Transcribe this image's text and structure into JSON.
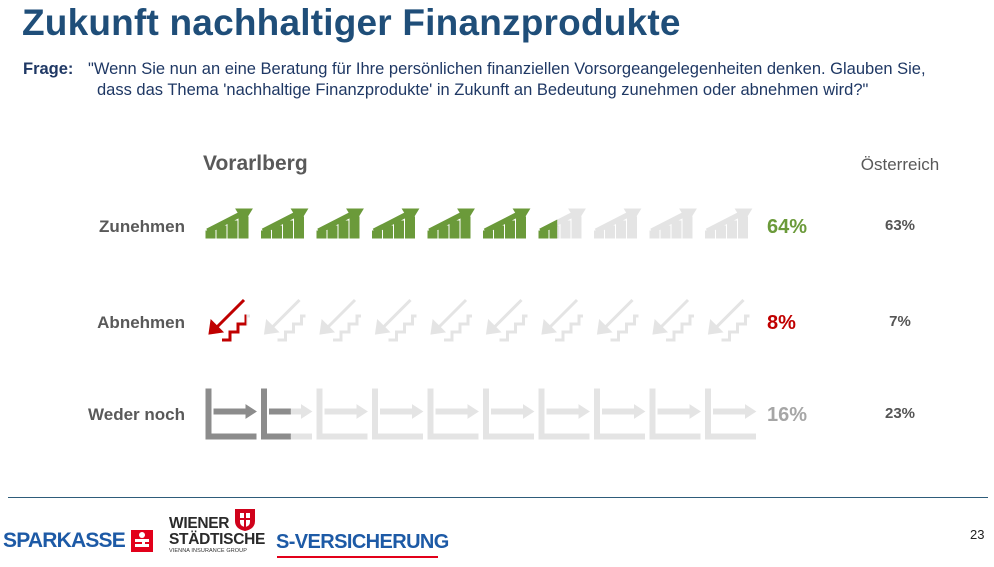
{
  "title": "Zukunft nachhaltiger Finanzprodukte",
  "question": {
    "label": "Frage:",
    "line1": "\"Wenn Sie nun an eine Beratung für Ihre persönlichen finanziellen Vorsorgeangelegenheiten denken. Glauben Sie,",
    "line2": "dass das Thema 'nachhaltige Finanzprodukte' in Zukunft an Bedeutung zunehmen oder abnehmen wird?\""
  },
  "chart_data": {
    "type": "bar",
    "title": "",
    "categories": [
      "Zunehmen",
      "Abnehmen",
      "Weder noch"
    ],
    "series": [
      {
        "name": "Vorarlberg",
        "values": [
          64,
          8,
          16
        ],
        "labels": [
          "64%",
          "8%",
          "16%"
        ]
      },
      {
        "name": "Österreich",
        "values": [
          63,
          7,
          23
        ],
        "labels": [
          "63%",
          "7%",
          "23%"
        ]
      }
    ],
    "unit": "%",
    "icons": [
      "rising-bars-icon",
      "falling-stairs-icon",
      "flat-arrow-icon"
    ],
    "icons_per_row": 10,
    "colors": {
      "Zunehmen": "#6b9a3a",
      "Abnehmen": "#c00000",
      "Weder noch": "#8c8c8c",
      "inactive": "#e4e4e4",
      "region_value": "#555555"
    }
  },
  "footer": {
    "logos": {
      "sparkasse": "SPARKASSE",
      "wiener_line1": "WIENER",
      "wiener_line2": "STÄDTISCHE",
      "wiener_sub": "VIENNA INSURANCE GROUP",
      "s_versicherung": "S-VERSICHERUNG"
    },
    "page_number": "23"
  }
}
